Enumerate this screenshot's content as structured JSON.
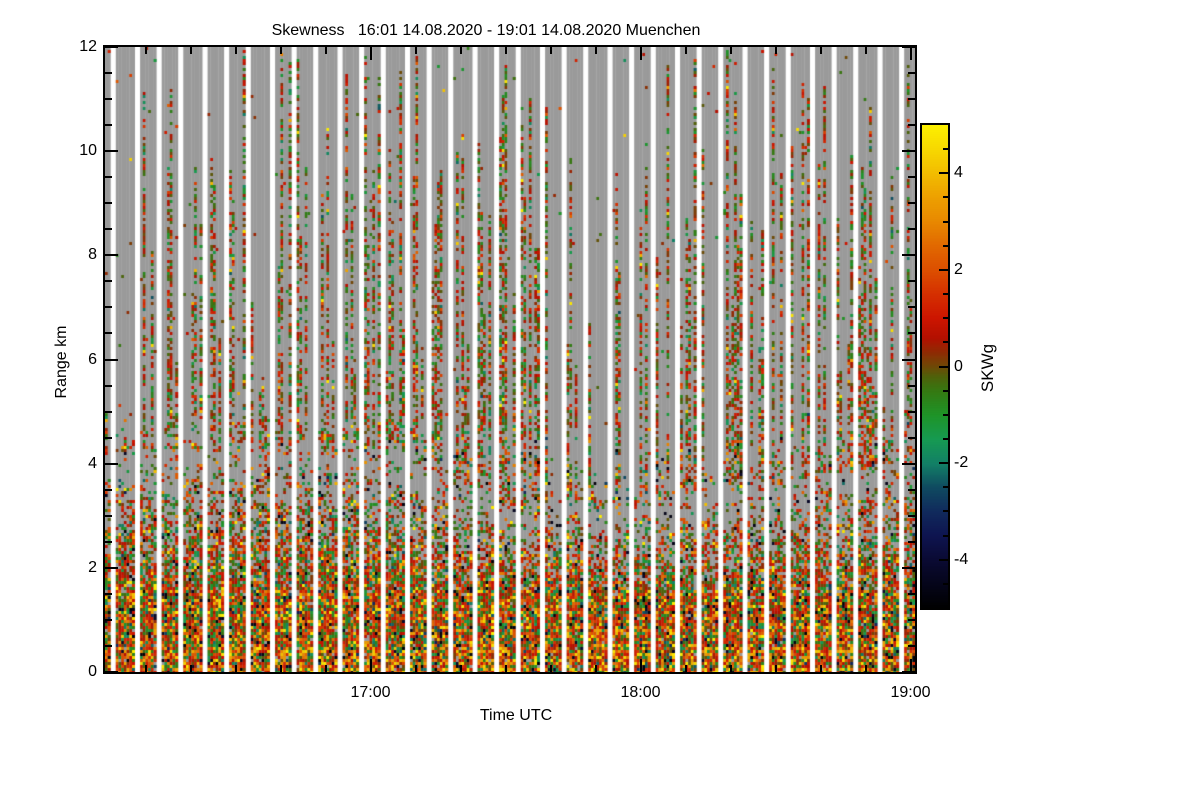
{
  "chart_data": {
    "type": "heatmap",
    "title": "Skewness   16:01 14.08.2020 - 19:01 14.08.2020 Muenchen",
    "xlabel": "Time UTC",
    "ylabel": "Range km",
    "x_range": [
      "16:01",
      "19:01"
    ],
    "x_total_minutes": 180,
    "x_ticks_major": [
      {
        "label": "17:00",
        "minutes": 59
      },
      {
        "label": "18:00",
        "minutes": 119
      },
      {
        "label": "19:00",
        "minutes": 179
      }
    ],
    "x_minor_interval_minutes": 10,
    "y_range_km": [
      0,
      12
    ],
    "y_ticks_major": [
      0,
      2,
      4,
      6,
      8,
      10,
      12
    ],
    "y_minor_interval_km": 0.5,
    "grid": false,
    "legend": "colorbar-right",
    "colorbar": {
      "label": "SKWg",
      "range": [
        -5,
        5
      ],
      "ticks_major": [
        4,
        2,
        0,
        -2,
        -4
      ],
      "minor_interval": 0.5,
      "colormap": [
        {
          "v": -5.0,
          "c": "#000000"
        },
        {
          "v": -4.5,
          "c": "#05051a"
        },
        {
          "v": -4.0,
          "c": "#0a0a33"
        },
        {
          "v": -3.5,
          "c": "#0e1450"
        },
        {
          "v": -3.0,
          "c": "#102a5c"
        },
        {
          "v": -2.5,
          "c": "#0f4a60"
        },
        {
          "v": -2.0,
          "c": "#128066"
        },
        {
          "v": -1.5,
          "c": "#169a52"
        },
        {
          "v": -1.0,
          "c": "#1e9428"
        },
        {
          "v": -0.5,
          "c": "#357912"
        },
        {
          "v": -0.2,
          "c": "#4f610a"
        },
        {
          "v": 0.0,
          "c": "#6e4a06"
        },
        {
          "v": 0.3,
          "c": "#8f2b03"
        },
        {
          "v": 0.6,
          "c": "#b31000"
        },
        {
          "v": 1.0,
          "c": "#cc1500"
        },
        {
          "v": 1.5,
          "c": "#d52f00"
        },
        {
          "v": 2.0,
          "c": "#dc4f00"
        },
        {
          "v": 2.5,
          "c": "#e16800"
        },
        {
          "v": 3.0,
          "c": "#e88800"
        },
        {
          "v": 3.5,
          "c": "#eda000"
        },
        {
          "v": 4.0,
          "c": "#f2bc00"
        },
        {
          "v": 4.5,
          "c": "#f7d800"
        },
        {
          "v": 5.0,
          "c": "#fcf000"
        }
      ]
    },
    "no_signal_color": "#9a9a9a",
    "gap_color": "#ffffff",
    "pattern": {
      "description": "Time-height skewness composite: 36 five-minute scan cycles separated by white no-data gaps (~1.2 min each). Within cycles, gray = measured but no signal. Dense multicolor speckle noise (green/red/orange/yellow/black) fills the boundary layer below ~1.4 km, ramping off toward the per-block dense-top height; sparse thin vertical cloud streaks (green/red) extend up to 12 km with block-dependent frequency.",
      "scan_cycle_minutes": 5,
      "gap_fraction_of_cycle": 0.24,
      "scan_blocks": 36,
      "boundary_layer_full_km": 1.4,
      "dense_top_km_per_block": [
        4.0,
        4.1,
        4.2,
        4.2,
        4.3,
        4.2,
        4.4,
        4.3,
        4.2,
        4.4,
        4.3,
        4.2,
        4.1,
        4.2,
        4.0,
        3.8,
        3.6,
        3.4,
        3.2,
        3.0,
        3.1,
        3.2,
        3.1,
        3.0,
        3.2,
        3.3,
        3.4,
        3.5,
        3.6,
        3.5,
        3.6,
        3.7,
        3.8,
        3.8,
        3.9,
        4.0
      ],
      "cloud_fraction_per_block": [
        0.3,
        0.25,
        0.25,
        0.3,
        0.25,
        0.3,
        0.35,
        0.4,
        0.35,
        0.45,
        0.5,
        0.45,
        0.55,
        0.6,
        0.55,
        0.5,
        0.55,
        0.5,
        0.45,
        0.4,
        0.3,
        0.35,
        0.3,
        0.35,
        0.4,
        0.45,
        0.55,
        0.5,
        0.55,
        0.5,
        0.45,
        0.5,
        0.55,
        0.5,
        0.6,
        0.55
      ]
    }
  }
}
